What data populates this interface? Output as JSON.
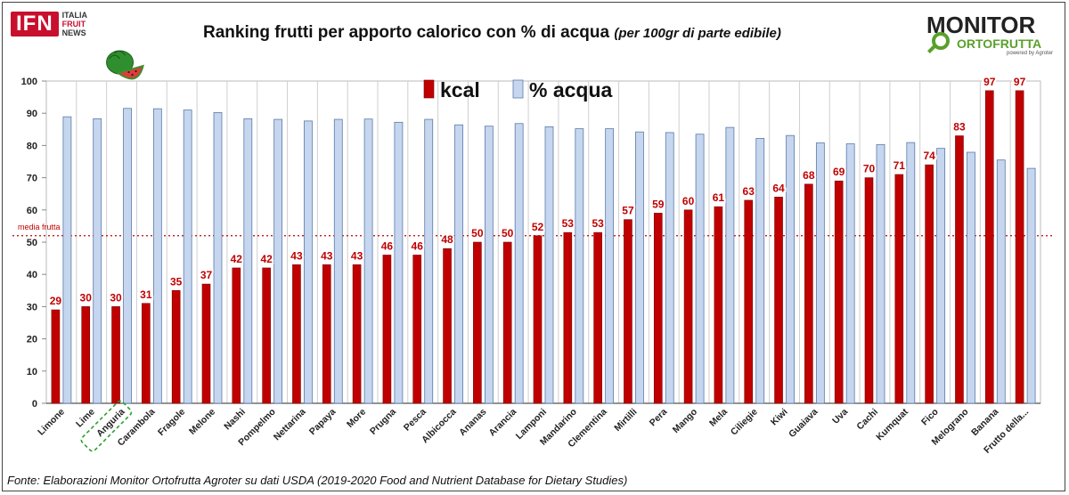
{
  "header": {
    "ifn_logo": "IFN",
    "ifn_line1": "ITALIA",
    "ifn_line2": "FRUIT",
    "ifn_line3": "NEWS",
    "title_main": "Ranking frutti per apporto calorico con % di acqua",
    "title_sub": "(per 100gr di parte edibile)",
    "monitor_logo": "MONITOR",
    "monitor_sub": "ORTOFRUTTA",
    "monitor_tiny": "powered by Agroter"
  },
  "footer": {
    "source": "Fonte: Elaborazioni Monitor Ortofrutta Agroter su dati USDA (2019-2020 Food and Nutrient Database for Dietary Studies)"
  },
  "colors": {
    "kcal": "#c00000",
    "acqua": "#c6d6ef",
    "acqua_stroke": "#5a7aa8",
    "label": "#c00000",
    "reference": "#c00000",
    "highlight": "#2e9e2e"
  },
  "chart_data": {
    "type": "bar",
    "title": "Ranking frutti per apporto calorico con % di acqua",
    "subtitle": "(per 100gr di parte edibile)",
    "ylim": [
      0,
      100
    ],
    "yticks": [
      0,
      10,
      20,
      30,
      40,
      50,
      60,
      70,
      80,
      90,
      100
    ],
    "legend_position": "top-center",
    "grid": "vertical separators",
    "categories": [
      "Limone",
      "Lime",
      "Anguria",
      "Carambola",
      "Fragole",
      "Melone",
      "Nashi",
      "Pompelmo",
      "Nettarina",
      "Papaya",
      "More",
      "Prugna",
      "Pesca",
      "Albicocca",
      "Ananas",
      "Arancia",
      "Lamponi",
      "Mandarino",
      "Clementina",
      "Mirtilli",
      "Pera",
      "Mango",
      "Mela",
      "Ciliegie",
      "Kiwi",
      "Guaiava",
      "Uva",
      "Cachi",
      "Kumquat",
      "Fico",
      "Melograno",
      "Banana",
      "Frutto della..."
    ],
    "highlighted_category": "Anguria",
    "series": [
      {
        "name": "kcal",
        "values": [
          29,
          30,
          30,
          31,
          35,
          37,
          42,
          42,
          43,
          43,
          43,
          46,
          46,
          48,
          50,
          50,
          52,
          53,
          53,
          57,
          59,
          60,
          61,
          63,
          64,
          68,
          69,
          70,
          71,
          74,
          83,
          97,
          97
        ],
        "data_labels": true
      },
      {
        "name": "% acqua",
        "values": [
          88.9,
          88.3,
          91.5,
          91.4,
          91.0,
          90.2,
          88.3,
          88.1,
          87.6,
          88.1,
          88.2,
          87.2,
          88.1,
          86.4,
          86.0,
          86.8,
          85.8,
          85.2,
          85.2,
          84.2,
          84.0,
          83.5,
          85.6,
          82.2,
          83.1,
          80.8,
          80.5,
          80.3,
          80.9,
          79.1,
          77.9,
          75.5,
          72.9
        ]
      }
    ],
    "reference_line": {
      "label": "media frutta",
      "value": 52
    }
  }
}
